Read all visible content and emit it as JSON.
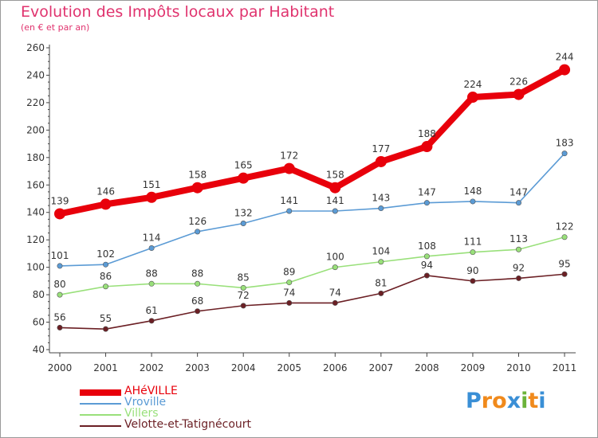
{
  "title": "Evolution des Impôts locaux par Habitant",
  "subtitle": "(en € et par an)",
  "logo": {
    "letters": [
      "P",
      "r",
      "o",
      "x",
      "i",
      "t",
      "i"
    ],
    "colors": [
      "#3a8fd6",
      "#f08a1c",
      "#f08a1c",
      "#3a8fd6",
      "#6bb33a",
      "#f08a1c",
      "#3a8fd6"
    ]
  },
  "chart_data": {
    "type": "line",
    "title": "Evolution des Impôts locaux par Habitant",
    "subtitle": "(en € et par an)",
    "xlabel": "",
    "ylabel": "",
    "categories": [
      "2000",
      "2001",
      "2002",
      "2003",
      "2004",
      "2005",
      "2006",
      "2007",
      "2008",
      "2009",
      "2010",
      "2011"
    ],
    "ylim": [
      40,
      260
    ],
    "yticks": [
      "40",
      "60",
      "80",
      "100",
      "120",
      "140",
      "160",
      "180",
      "200",
      "220",
      "240",
      "260"
    ],
    "grid": false,
    "legend_position": "bottom-left",
    "series": [
      {
        "name": "AHéVILLE",
        "color": "#e8000b",
        "emphasis": true,
        "values": [
          139,
          146,
          151,
          158,
          165,
          172,
          158,
          177,
          188,
          224,
          226,
          244
        ]
      },
      {
        "name": "Vroville",
        "color": "#5b9bd5",
        "emphasis": false,
        "values": [
          101,
          102,
          114,
          126,
          132,
          141,
          141,
          143,
          147,
          148,
          147,
          183
        ]
      },
      {
        "name": "Villers",
        "color": "#99e07a",
        "emphasis": false,
        "values": [
          80,
          86,
          88,
          88,
          85,
          89,
          100,
          104,
          108,
          111,
          113,
          122
        ]
      },
      {
        "name": "Velotte-et-Tatignécourt",
        "color": "#6b1f24",
        "emphasis": false,
        "values": [
          56,
          55,
          61,
          68,
          72,
          74,
          74,
          81,
          94,
          90,
          92,
          95
        ]
      }
    ]
  }
}
